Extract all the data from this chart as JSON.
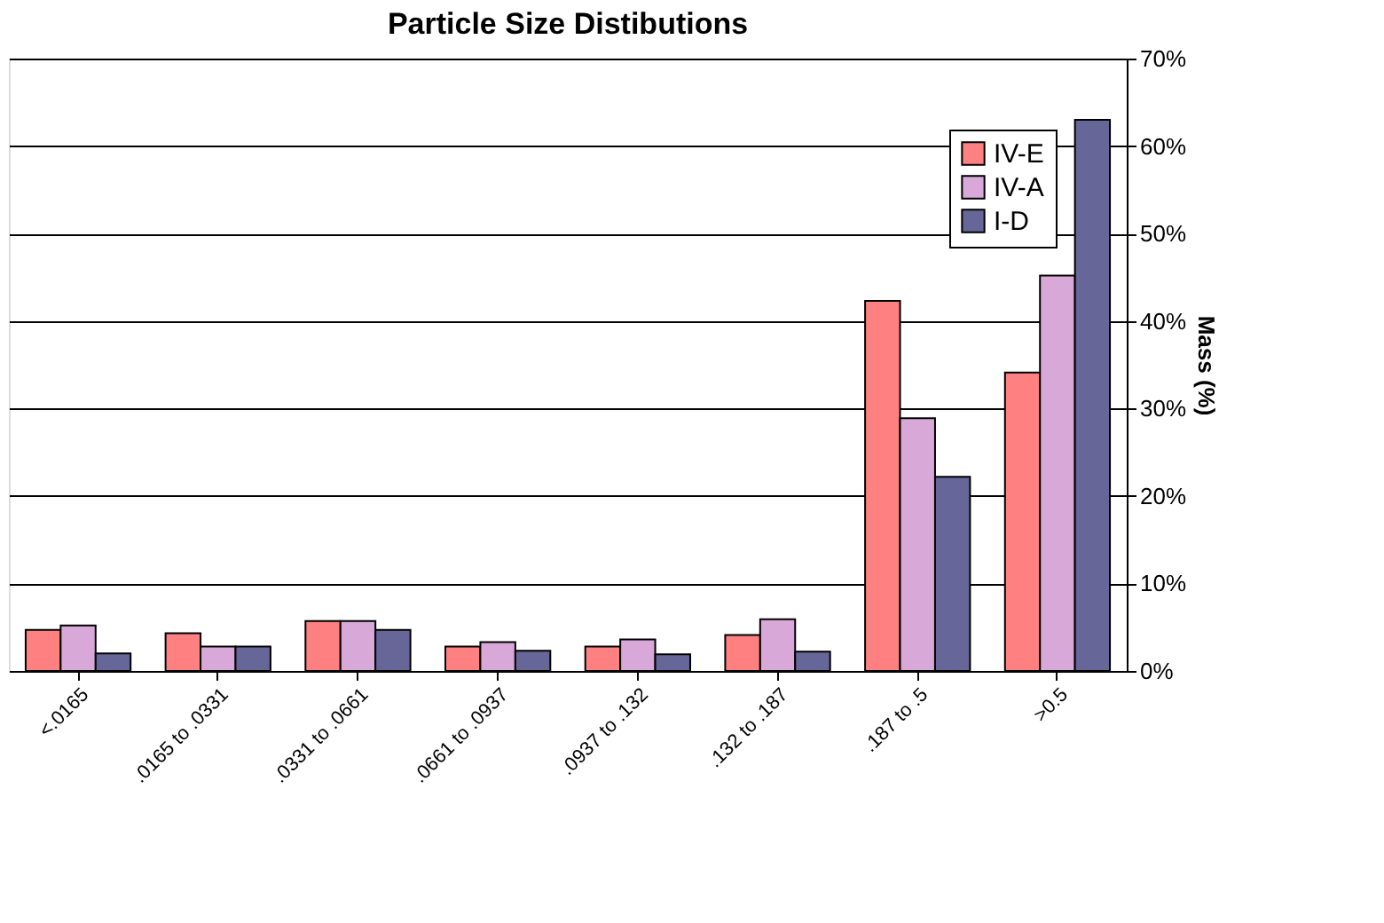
{
  "chart_data": {
    "type": "bar",
    "title": "Particle Size Distibutions",
    "ylabel": "Mass (%)",
    "categories": [
      "<.0165",
      ".0165 to .0331",
      ".0331 to .0661",
      ".0661 to .0937",
      ".0937 to .132",
      ".132 to .187",
      ".187 to .5",
      ">0.5"
    ],
    "series": [
      {
        "name": "IV-E",
        "color": "#ff8080",
        "values": [
          4.7,
          4.3,
          5.7,
          2.8,
          2.8,
          4.1,
          42.3,
          34.1
        ]
      },
      {
        "name": "IV-A",
        "color": "#d8a8d8",
        "values": [
          5.2,
          2.8,
          5.7,
          3.3,
          3.6,
          5.9,
          28.9,
          45.2
        ]
      },
      {
        "name": "I-D",
        "color": "#666699",
        "values": [
          2.0,
          2.8,
          4.7,
          2.3,
          1.9,
          2.2,
          22.2,
          63.0
        ]
      }
    ],
    "ylim": [
      0,
      70
    ],
    "yticks": [
      {
        "value": 0,
        "label": "0%"
      },
      {
        "value": 10,
        "label": "10%"
      },
      {
        "value": 20,
        "label": "20%"
      },
      {
        "value": 30,
        "label": "30%"
      },
      {
        "value": 40,
        "label": "40%"
      },
      {
        "value": 50,
        "label": "50%"
      },
      {
        "value": 60,
        "label": "60%"
      },
      {
        "value": 70,
        "label": "70%"
      }
    ],
    "grid": "y",
    "legend": "top right"
  }
}
